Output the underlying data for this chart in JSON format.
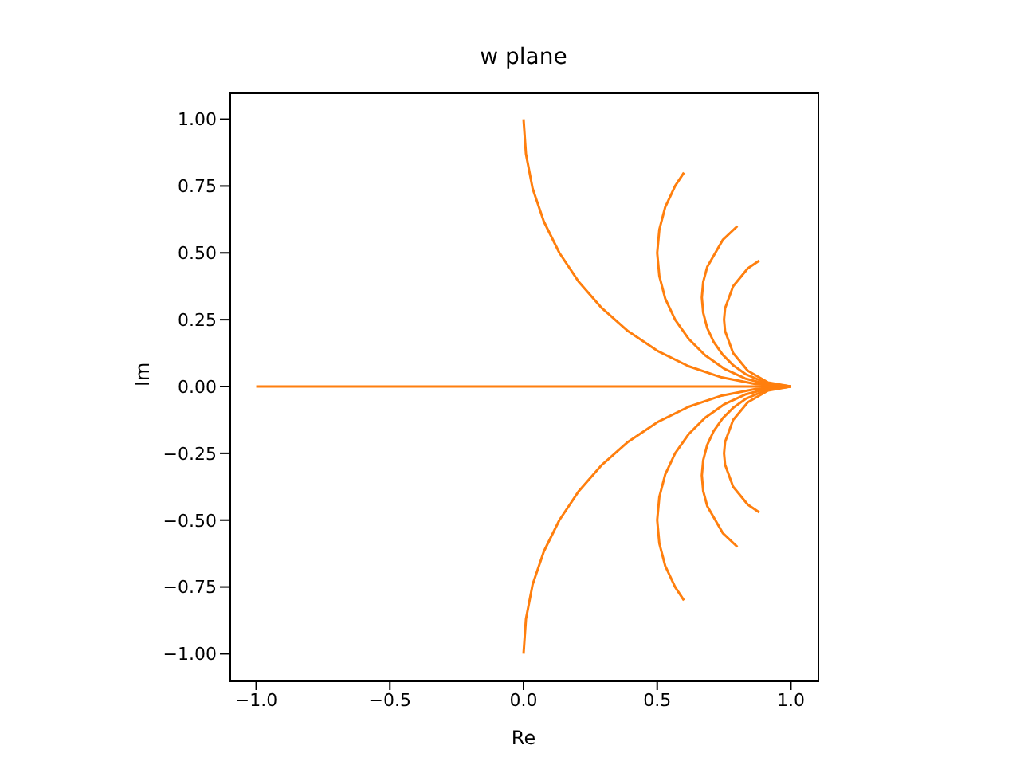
{
  "chart_data": {
    "type": "line",
    "title": "w plane",
    "xlabel": "Re",
    "ylabel": "Im",
    "xlim": [
      -1.1,
      1.1
    ],
    "ylim": [
      -1.1,
      1.1
    ],
    "xticks": [
      {
        "value": -1,
        "label": "−1.0"
      },
      {
        "value": -0.5,
        "label": "−0.5"
      },
      {
        "value": 0,
        "label": "0.0"
      },
      {
        "value": 0.5,
        "label": "0.5"
      },
      {
        "value": 1,
        "label": "1.0"
      }
    ],
    "yticks": [
      {
        "value": -1,
        "label": "−1.00"
      },
      {
        "value": -0.75,
        "label": "−0.75"
      },
      {
        "value": -0.5,
        "label": "−0.50"
      },
      {
        "value": -0.25,
        "label": "−0.25"
      },
      {
        "value": 0,
        "label": "0.00"
      },
      {
        "value": 0.25,
        "label": "0.25"
      },
      {
        "value": 0.5,
        "label": "0.50"
      },
      {
        "value": 0.75,
        "label": "0.75"
      },
      {
        "value": 1,
        "label": "1.00"
      }
    ],
    "series": [
      {
        "color": "#ff7f0e",
        "x": [
          -1,
          1
        ],
        "values": [
          0,
          0
        ]
      },
      {
        "color": "#ff7f0e",
        "x": [
          0,
          0.009,
          0.034,
          0.076,
          0.134,
          0.207,
          0.293,
          0.391,
          0.5,
          0.617,
          0.741,
          0.87,
          1
        ],
        "values": [
          1,
          0.87,
          0.741,
          0.617,
          0.5,
          0.391,
          0.293,
          0.207,
          0.134,
          0.076,
          0.034,
          0.009,
          0
        ]
      },
      {
        "color": "#ff7f0e",
        "x": [
          0.6,
          0.567,
          0.53,
          0.508,
          0.5,
          0.508,
          0.53,
          0.567,
          0.617,
          0.679,
          0.75,
          0.829,
          0.913,
          1
        ],
        "values": [
          0.8,
          0.75,
          0.671,
          0.587,
          0.5,
          0.413,
          0.329,
          0.25,
          0.179,
          0.117,
          0.067,
          0.03,
          0.008,
          0
        ]
      },
      {
        "color": "#ff7f0e",
        "x": [
          0.8,
          0.745,
          0.687,
          0.672,
          0.667,
          0.672,
          0.687,
          0.711,
          0.745,
          0.786,
          0.833,
          0.914,
          1
        ],
        "values": [
          0.6,
          0.548,
          0.447,
          0.391,
          0.333,
          0.276,
          0.219,
          0.167,
          0.119,
          0.078,
          0.045,
          0.011,
          0
        ]
      },
      {
        "color": "#ff7f0e",
        "x": [
          0.882,
          0.839,
          0.784,
          0.754,
          0.75,
          0.754,
          0.784,
          0.839,
          0.915,
          1
        ],
        "values": [
          0.471,
          0.442,
          0.375,
          0.293,
          0.25,
          0.207,
          0.125,
          0.059,
          0.015,
          0
        ]
      },
      {
        "color": "#ff7f0e",
        "x": [
          0,
          0.009,
          0.034,
          0.076,
          0.134,
          0.207,
          0.293,
          0.391,
          0.5,
          0.617,
          0.741,
          0.87,
          1
        ],
        "values": [
          -1,
          -0.87,
          -0.741,
          -0.617,
          -0.5,
          -0.391,
          -0.293,
          -0.207,
          -0.134,
          -0.076,
          -0.034,
          -0.009,
          0
        ]
      },
      {
        "color": "#ff7f0e",
        "x": [
          0.6,
          0.567,
          0.53,
          0.508,
          0.5,
          0.508,
          0.53,
          0.567,
          0.617,
          0.679,
          0.75,
          0.829,
          0.913,
          1
        ],
        "values": [
          -0.8,
          -0.75,
          -0.671,
          -0.587,
          -0.5,
          -0.413,
          -0.329,
          -0.25,
          -0.179,
          -0.117,
          -0.067,
          -0.03,
          -0.008,
          0
        ]
      },
      {
        "color": "#ff7f0e",
        "x": [
          0.8,
          0.745,
          0.687,
          0.672,
          0.667,
          0.672,
          0.687,
          0.711,
          0.745,
          0.786,
          0.833,
          0.914,
          1
        ],
        "values": [
          -0.6,
          -0.548,
          -0.447,
          -0.391,
          -0.333,
          -0.276,
          -0.219,
          -0.167,
          -0.119,
          -0.078,
          -0.045,
          -0.011,
          0
        ]
      },
      {
        "color": "#ff7f0e",
        "x": [
          0.882,
          0.839,
          0.784,
          0.754,
          0.75,
          0.754,
          0.784,
          0.839,
          0.915,
          1
        ],
        "values": [
          -0.471,
          -0.442,
          -0.375,
          -0.293,
          -0.25,
          -0.207,
          -0.125,
          -0.059,
          -0.015,
          0
        ]
      }
    ]
  }
}
